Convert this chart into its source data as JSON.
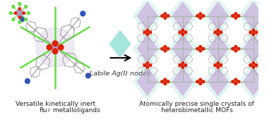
{
  "bg_color": "#ffffff",
  "text_color": "#222222",
  "arrow_color": "#111111",
  "ag_diamond_color": "#5dd8c8",
  "label_fontsize": 6.5,
  "arrow_label_fontsize": 6.8,
  "left_label_line1": "Versatile kinetically inert",
  "left_label_line2": "Ru",
  "left_label_sub": "2",
  "left_label_line2_rest": " metalloligands",
  "right_label_line1": "Atomically precise single crystals of",
  "right_label_line2": "heterobimetallic MOFs",
  "arrow_text": "Labile Ag(I) nodes",
  "green_line_color": "#66dd44",
  "ru_center_color": "#b090c8",
  "red_o_color": "#dd2200",
  "gray_c_color": "#999999",
  "blue_n_color": "#3355bb",
  "ag_node_color": "#c8a8d8",
  "teal_color": "#88ddd0"
}
